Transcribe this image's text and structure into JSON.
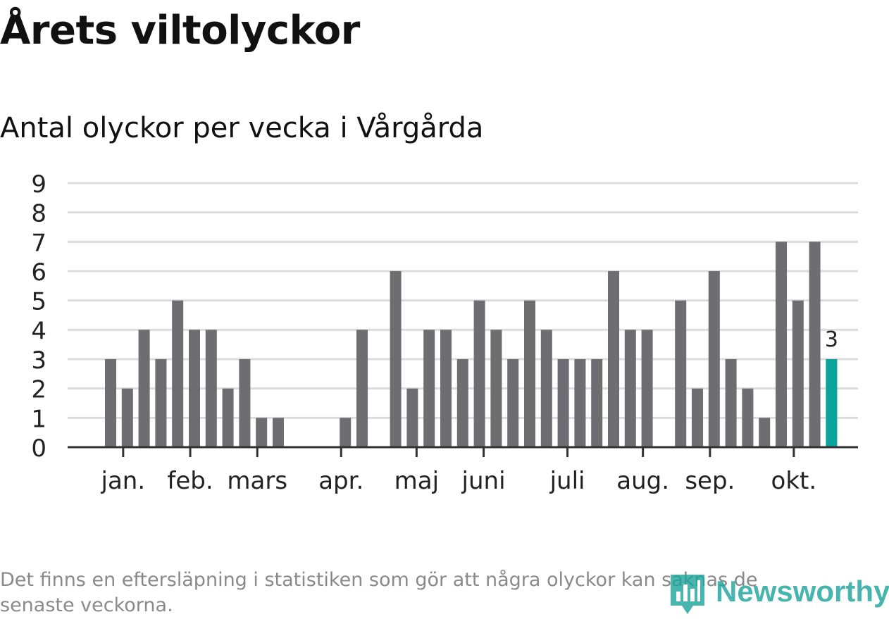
{
  "title": "Årets viltolyckor",
  "subtitle": "Antal olyckor per vecka i Vårgårda",
  "note": "Det finns en eftersläpning i statistiken som gör att några olyckor kan saknas de\nsenaste veckorna.",
  "logo": {
    "text": "Newsworthy",
    "icon": "bar-chart-logo-icon"
  },
  "colors": {
    "bar": "#6e6d72",
    "highlight": "#0ba29b",
    "grid": "#dcdcdc",
    "axis": "#333333",
    "text": "#222222"
  },
  "chart_data": {
    "type": "bar",
    "title": "",
    "xlabel": "",
    "ylabel": "",
    "ylim": [
      0,
      9
    ],
    "yticks": [
      0,
      1,
      2,
      3,
      4,
      5,
      6,
      7,
      8,
      9
    ],
    "grid": true,
    "week_values": [
      0,
      0,
      3,
      2,
      4,
      3,
      5,
      4,
      4,
      2,
      3,
      1,
      1,
      0,
      0,
      0,
      1,
      4,
      0,
      6,
      2,
      4,
      4,
      3,
      5,
      4,
      3,
      5,
      4,
      3,
      3,
      3,
      6,
      4,
      4,
      0,
      5,
      2,
      6,
      3,
      2,
      1,
      7,
      5,
      7,
      3
    ],
    "highlight_last": true,
    "highlight_label": "3",
    "month_labels": [
      {
        "label": "jan.",
        "week": 2.75
      },
      {
        "label": "feb.",
        "week": 6.75
      },
      {
        "label": "mars",
        "week": 10.75
      },
      {
        "label": "apr.",
        "week": 15.75
      },
      {
        "label": "maj",
        "week": 20.25
      },
      {
        "label": "juni",
        "week": 24.25
      },
      {
        "label": "juli",
        "week": 29.25
      },
      {
        "label": "aug.",
        "week": 33.75
      },
      {
        "label": "sep.",
        "week": 37.75
      },
      {
        "label": "okt.",
        "week": 42.75
      }
    ]
  }
}
